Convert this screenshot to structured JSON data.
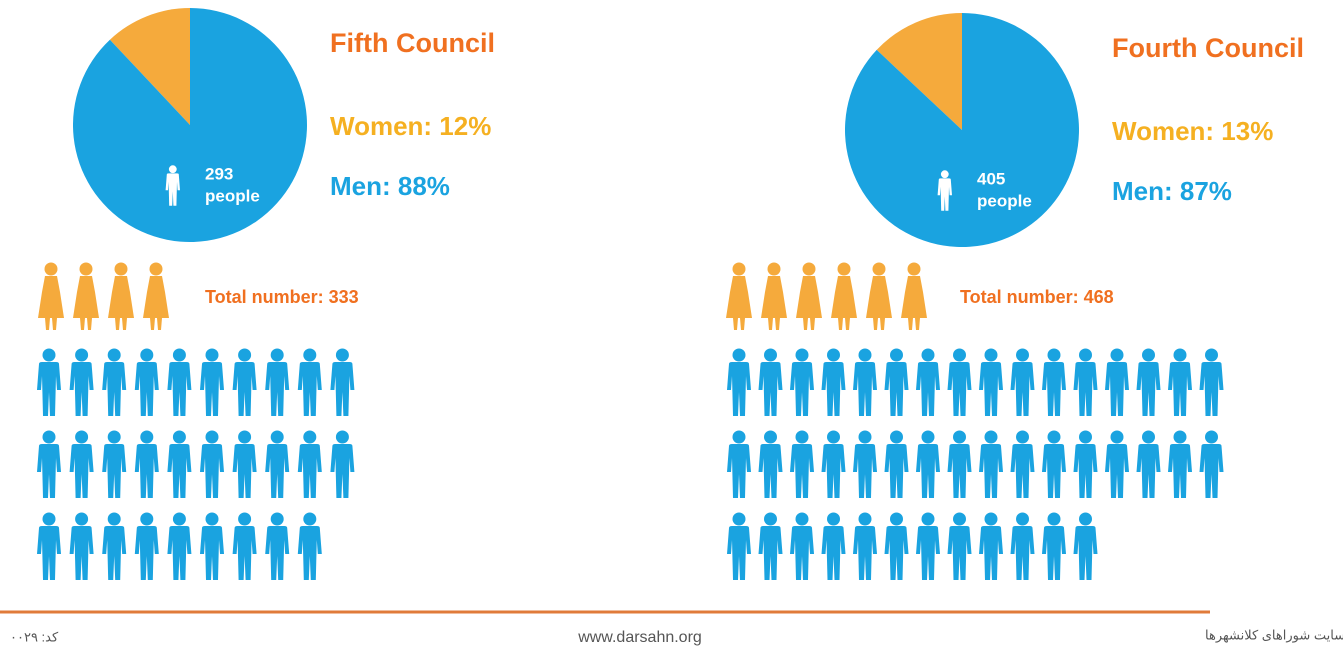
{
  "chart_data": [
    {
      "type": "pie",
      "title": "Fifth Council",
      "categories": [
        "Women",
        "Men"
      ],
      "values": [
        12,
        88
      ],
      "value_labels": [
        "Women: 12%",
        "Men: 88%"
      ],
      "colors": [
        "#f5aa3c",
        "#1aa3e0"
      ],
      "men_count": 293,
      "men_count_unit": "people",
      "total": {
        "value": 333,
        "label": "Total number: 333"
      }
    },
    {
      "type": "pie",
      "title": "Fourth Council",
      "categories": [
        "Women",
        "Men"
      ],
      "values": [
        13,
        87
      ],
      "value_labels": [
        "Women: 13%",
        "Men: 87%"
      ],
      "colors": [
        "#f5aa3c",
        "#1aa3e0"
      ],
      "men_count": 405,
      "men_count_unit": "people",
      "total": {
        "value": 468,
        "label": "Total number: 468"
      }
    }
  ],
  "footer": {
    "website": "www.darsahn.org",
    "source": "منبع: گزارش فرمانداری های سراسر کشور و وب سایت شوراهای کلانشهرها",
    "code": "کد: ۰۰۲۹"
  }
}
